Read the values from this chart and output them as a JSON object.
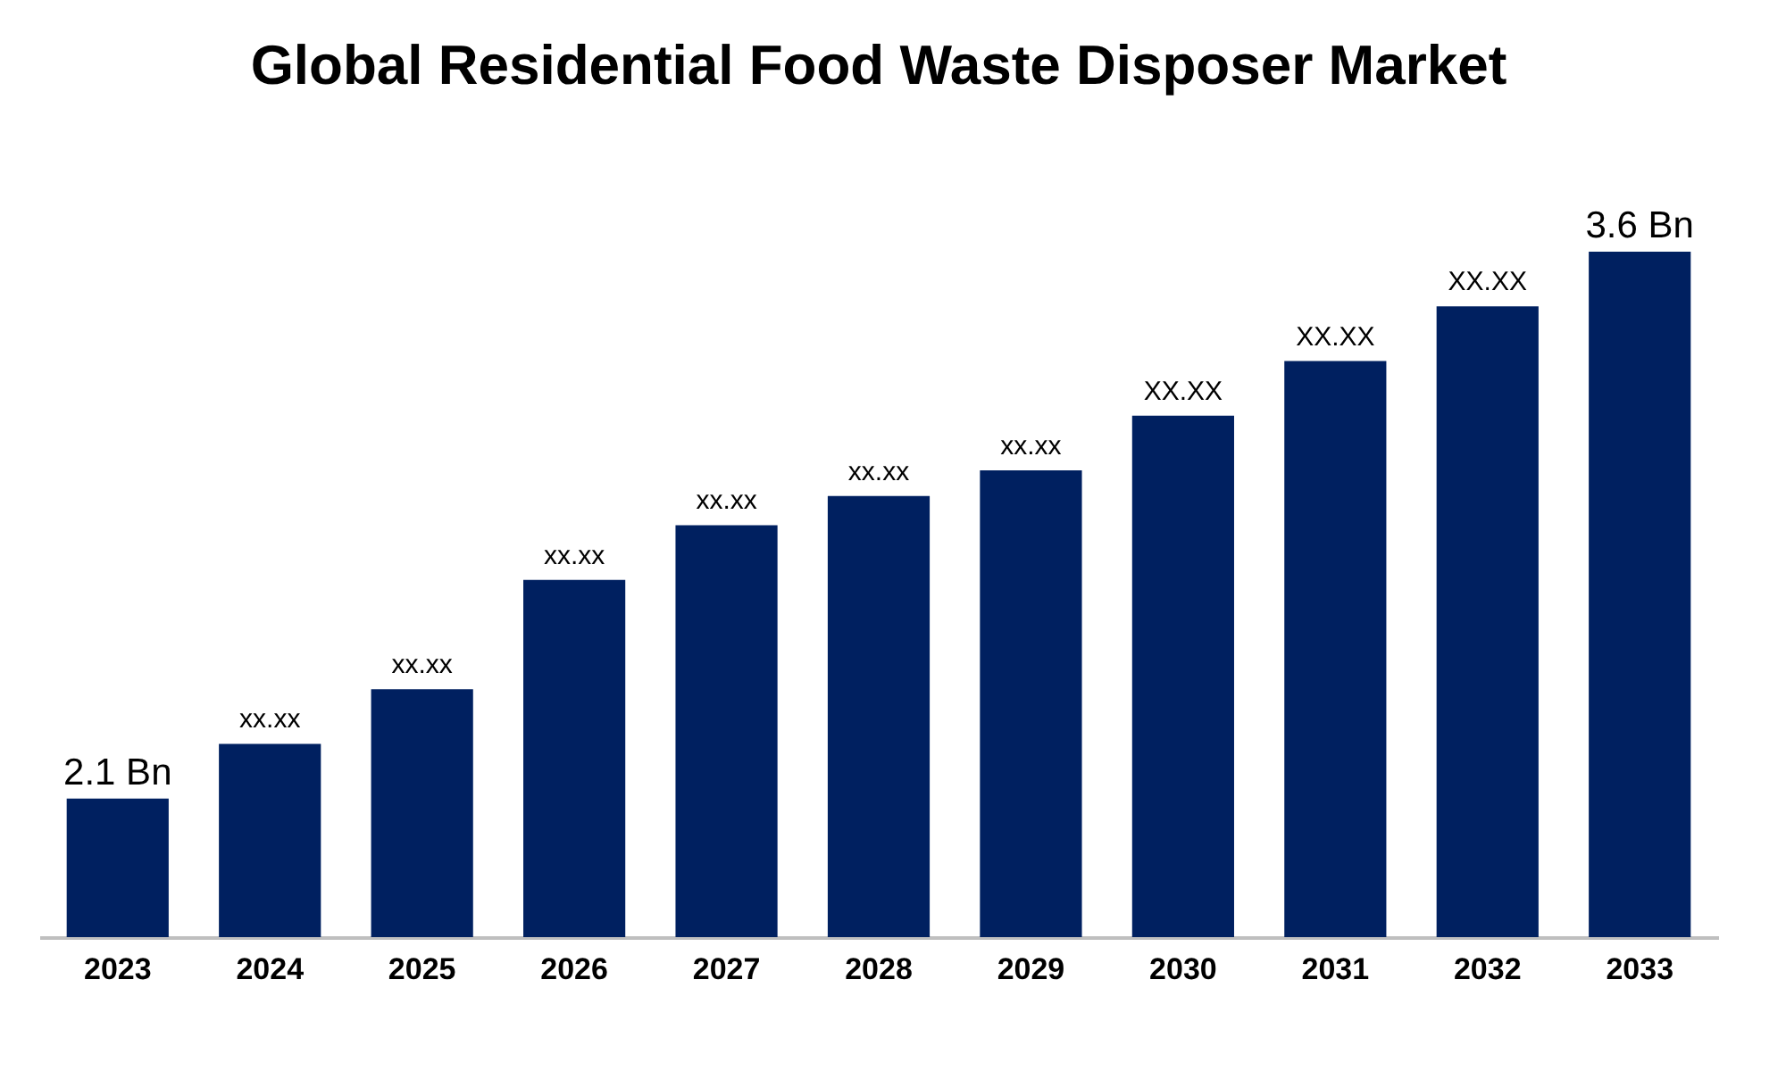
{
  "chart_data": {
    "type": "bar",
    "title": "Global Residential Food Waste Disposer Market",
    "categories": [
      "2023",
      "2024",
      "2025",
      "2026",
      "2027",
      "2028",
      "2029",
      "2030",
      "2031",
      "2032",
      "2033"
    ],
    "values": [
      2.1,
      2.25,
      2.4,
      2.7,
      2.85,
      2.93,
      3.0,
      3.15,
      3.3,
      3.45,
      3.6
    ],
    "value_labels": [
      "2.1 Bn",
      "xx.xx",
      "xx.xx",
      "xx.xx",
      "xx.xx",
      "xx.xx",
      "xx.xx",
      "XX.XX",
      "XX.XX",
      "XX.XX",
      "3.6 Bn"
    ],
    "ylim": [
      1.72,
      3.6
    ],
    "color": "#002060"
  }
}
